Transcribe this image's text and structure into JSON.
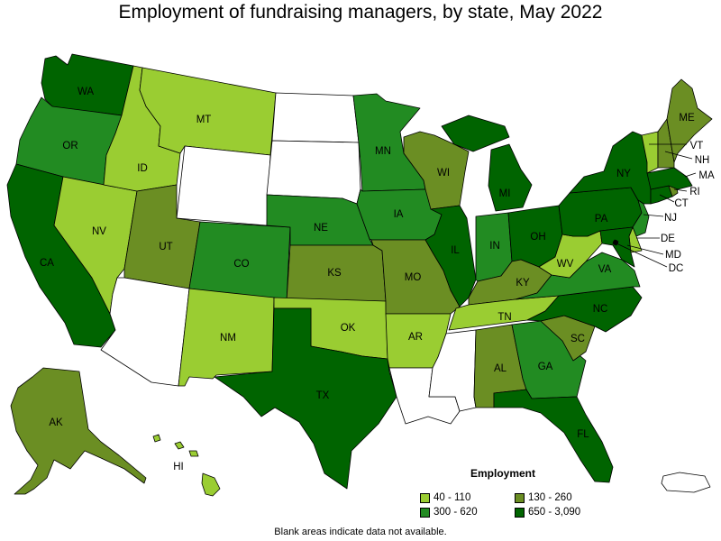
{
  "title": "Employment of fundraising managers, by state, May 2022",
  "footnote": "Blank areas indicate data not available.",
  "legend": {
    "title": "Employment",
    "items": [
      {
        "label": "40 - 110",
        "color": "#9acd32"
      },
      {
        "label": "130 - 260",
        "color": "#6b8e23"
      },
      {
        "label": "300 - 620",
        "color": "#228b22"
      },
      {
        "label": "650 - 3,090",
        "color": "#006400"
      }
    ]
  },
  "colors": {
    "none": "#ffffff",
    "c1": "#9acd32",
    "c2": "#6b8e23",
    "c3": "#228b22",
    "c4": "#006400"
  },
  "states": {
    "WA": "c4",
    "OR": "c3",
    "CA": "c4",
    "NV": "c1",
    "ID": "c1",
    "MT": "c1",
    "WY": "none",
    "UT": "c2",
    "AZ": "none",
    "CO": "c3",
    "NM": "c1",
    "ND": "none",
    "SD": "none",
    "NE": "c3",
    "KS": "c2",
    "OK": "c1",
    "TX": "c4",
    "MN": "c3",
    "IA": "c3",
    "MO": "c2",
    "AR": "c1",
    "LA": "none",
    "WI": "c2",
    "IL": "c4",
    "MI": "c4",
    "IN": "c3",
    "OH": "c4",
    "KY": "c2",
    "TN": "c1",
    "MS": "none",
    "AL": "c2",
    "GA": "c3",
    "FL": "c4",
    "SC": "c2",
    "NC": "c4",
    "VA": "c3",
    "WV": "c1",
    "PA": "c4",
    "NY": "c4",
    "VT": "c1",
    "NH": "c2",
    "ME": "c2",
    "MA": "c4",
    "RI": "c2",
    "CT": "c4",
    "NJ": "c3",
    "DE": "c1",
    "MD": "c4",
    "DC": "c4",
    "AK": "c2",
    "HI": "c1",
    "PR": "none"
  },
  "labels": {
    "WA": "WA",
    "OR": "OR",
    "CA": "CA",
    "NV": "NV",
    "ID": "ID",
    "MT": "MT",
    "UT": "UT",
    "CO": "CO",
    "NM": "NM",
    "NE": "NE",
    "KS": "KS",
    "OK": "OK",
    "TX": "TX",
    "MN": "MN",
    "IA": "IA",
    "MO": "MO",
    "AR": "AR",
    "WI": "WI",
    "IL": "IL",
    "MI": "MI",
    "IN": "IN",
    "OH": "OH",
    "KY": "KY",
    "TN": "TN",
    "AL": "AL",
    "GA": "GA",
    "FL": "FL",
    "SC": "SC",
    "NC": "NC",
    "VA": "VA",
    "WV": "WV",
    "PA": "PA",
    "NY": "NY",
    "ME": "ME",
    "VT": "VT",
    "NH": "NH",
    "MA": "MA",
    "RI": "RI",
    "CT": "CT",
    "NJ": "NJ",
    "DE": "DE",
    "MD": "MD",
    "DC": "DC",
    "AK": "AK",
    "HI": "HI"
  }
}
